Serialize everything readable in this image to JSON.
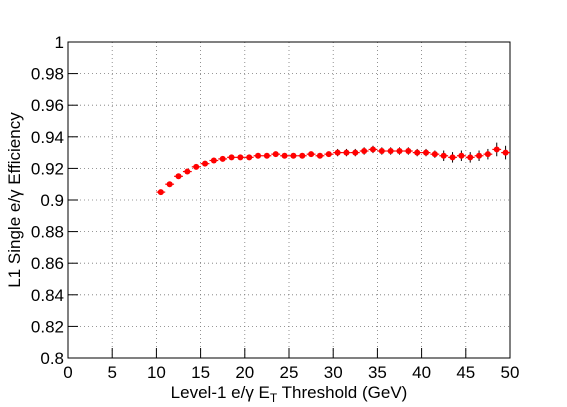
{
  "chart_data": {
    "type": "errorbar-scatter",
    "ylabel": "L1 Single e/γ Efficiency",
    "xlabel": [
      "Level-1 e/γ E",
      "T",
      " Threshold (GeV)"
    ],
    "x": [
      10.5,
      11.5,
      12.5,
      13.5,
      14.5,
      15.5,
      16.5,
      17.5,
      18.5,
      19.5,
      20.5,
      21.5,
      22.5,
      23.5,
      24.5,
      25.5,
      26.5,
      27.5,
      28.5,
      29.5,
      30.5,
      31.5,
      32.5,
      33.5,
      34.5,
      35.5,
      36.5,
      37.5,
      38.5,
      39.5,
      40.5,
      41.5,
      42.5,
      43.5,
      44.5,
      45.5,
      46.5,
      47.5,
      48.5,
      49.5
    ],
    "values": [
      0.905,
      0.91,
      0.915,
      0.918,
      0.921,
      0.923,
      0.925,
      0.926,
      0.927,
      0.927,
      0.927,
      0.928,
      0.928,
      0.929,
      0.928,
      0.928,
      0.928,
      0.929,
      0.928,
      0.929,
      0.93,
      0.93,
      0.93,
      0.931,
      0.932,
      0.931,
      0.931,
      0.931,
      0.931,
      0.93,
      0.93,
      0.929,
      0.928,
      0.927,
      0.928,
      0.927,
      0.928,
      0.929,
      0.932,
      0.93
    ],
    "errors": [
      0.001,
      0.001,
      0.001,
      0.001,
      0.001,
      0.001,
      0.001,
      0.001,
      0.001,
      0.001,
      0.001,
      0.001,
      0.001,
      0.001,
      0.001,
      0.001,
      0.001,
      0.001,
      0.001,
      0.001,
      0.002,
      0.002,
      0.002,
      0.002,
      0.002,
      0.002,
      0.002,
      0.002,
      0.002,
      0.002,
      0.002,
      0.002,
      0.003,
      0.003,
      0.003,
      0.003,
      0.003,
      0.003,
      0.004,
      0.004
    ],
    "color": "#ff0000",
    "xlim": [
      0,
      50
    ],
    "xticks": [
      0,
      5,
      10,
      15,
      20,
      25,
      30,
      35,
      40,
      45,
      50
    ],
    "ylim": [
      0.8,
      1
    ],
    "yticks": [
      0.8,
      0.82,
      0.84,
      0.86,
      0.88,
      0.9,
      0.92,
      0.94,
      0.96,
      0.98,
      1
    ],
    "grid": true
  }
}
